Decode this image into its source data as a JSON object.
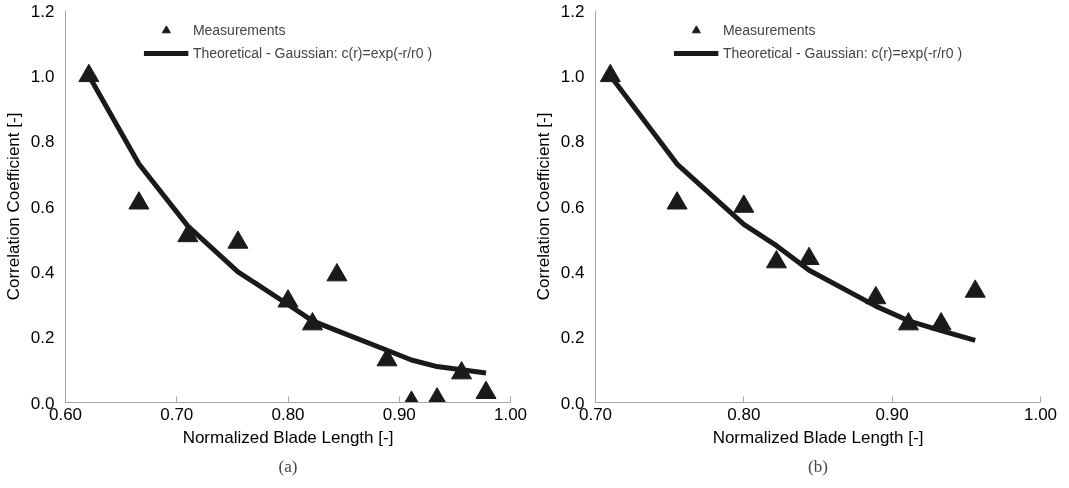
{
  "chart_data": [
    {
      "type": "scatter",
      "xlabel": "Normalized Blade Length [-]",
      "ylabel": "Correlation Coefficient [-]",
      "annotations": [
        "(a)"
      ],
      "xlim": [
        0.6,
        1.0
      ],
      "xticks": [
        {
          "value": 0.6,
          "label": "0.60"
        },
        {
          "value": 0.7,
          "label": "0.70"
        },
        {
          "value": 0.8,
          "label": "0.80"
        },
        {
          "value": 0.9,
          "label": "0.90"
        },
        {
          "value": 1.0,
          "label": "1.00"
        }
      ],
      "ylim": [
        0,
        1.2
      ],
      "yticks": [
        {
          "value": 0,
          "label": "0.0"
        },
        {
          "value": 0.2,
          "label": "0.2"
        },
        {
          "value": 0.4,
          "label": "0.4"
        },
        {
          "value": 0.6,
          "label": "0.6"
        },
        {
          "value": 0.8,
          "label": "0.8"
        },
        {
          "value": 1.0,
          "label": "1.0"
        },
        {
          "value": 1.2,
          "label": "1.2"
        }
      ],
      "grid": false,
      "legend": "top",
      "series": [
        {
          "name": "Measurements",
          "marker": "triangle",
          "color": "#1a1a1a",
          "x": [
            0.621,
            0.666,
            0.71,
            0.755,
            0.8,
            0.822,
            0.844,
            0.889,
            0.911,
            0.934,
            0.956,
            0.978
          ],
          "values": [
            1.0,
            0.61,
            0.51,
            0.49,
            0.31,
            0.24,
            0.39,
            0.13,
            0.0,
            0.01,
            0.09,
            0.03
          ]
        },
        {
          "name": "Theoretical - Gaussian: c(r)=exp(-r/r0 )",
          "type": "line",
          "line_style": "solid",
          "color": "#1a1a1a",
          "x": [
            0.621,
            0.666,
            0.71,
            0.755,
            0.8,
            0.822,
            0.844,
            0.889,
            0.911,
            0.934,
            0.956,
            0.978
          ],
          "values": [
            1.0,
            0.73,
            0.54,
            0.4,
            0.3,
            0.25,
            0.22,
            0.16,
            0.13,
            0.11,
            0.1,
            0.09
          ]
        }
      ]
    },
    {
      "type": "scatter",
      "xlabel": "Normalized Blade Length [-]",
      "ylabel": "Correlation Coefficient [-]",
      "annotations": [
        "(b)"
      ],
      "xlim": [
        0.7,
        1.0
      ],
      "xticks": [
        {
          "value": 0.7,
          "label": "0.70"
        },
        {
          "value": 0.8,
          "label": "0.80"
        },
        {
          "value": 0.9,
          "label": "0.90"
        },
        {
          "value": 1.0,
          "label": "1.00"
        }
      ],
      "ylim": [
        0,
        1.2
      ],
      "yticks": [
        {
          "value": 0,
          "label": "0.0"
        },
        {
          "value": 0.2,
          "label": "0.2"
        },
        {
          "value": 0.4,
          "label": "0.4"
        },
        {
          "value": 0.6,
          "label": "0.6"
        },
        {
          "value": 0.8,
          "label": "0.8"
        },
        {
          "value": 1.0,
          "label": "1.0"
        },
        {
          "value": 1.2,
          "label": "1.2"
        }
      ],
      "grid": false,
      "legend": "top",
      "series": [
        {
          "name": "Measurements",
          "marker": "triangle",
          "color": "#1a1a1a",
          "x": [
            0.71,
            0.755,
            0.8,
            0.822,
            0.844,
            0.889,
            0.911,
            0.933,
            0.956
          ],
          "values": [
            1.0,
            0.61,
            0.6,
            0.43,
            0.44,
            0.32,
            0.24,
            0.24,
            0.34
          ]
        },
        {
          "name": "Theoretical - Gaussian: c(r)=exp(-r/r0 )",
          "type": "line",
          "line_style": "solid",
          "color": "#1a1a1a",
          "x": [
            0.71,
            0.755,
            0.8,
            0.822,
            0.844,
            0.889,
            0.911,
            0.933,
            0.956
          ],
          "values": [
            1.0,
            0.73,
            0.545,
            0.48,
            0.405,
            0.295,
            0.25,
            0.22,
            0.19
          ]
        }
      ]
    }
  ]
}
